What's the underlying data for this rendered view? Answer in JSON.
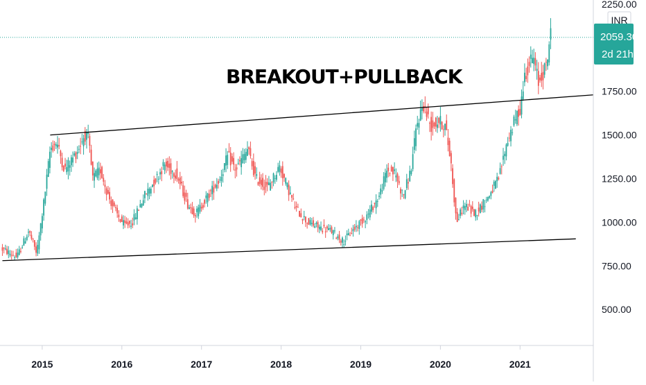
{
  "chart_data": {
    "type": "candlestick",
    "title": "",
    "annotation": "BREAKOUT+PULLBACK",
    "currency": "INR",
    "last_price": "2059.30",
    "countdown": "2d 21h",
    "y_axis": {
      "range": [
        250,
        2300
      ],
      "ticks": [
        "2250.00",
        "1750.00",
        "1500.00",
        "1250.00",
        "1000.00",
        "750.00",
        "500.00"
      ],
      "tick_values": [
        2250,
        1750,
        1500,
        1250,
        1000,
        750,
        500
      ]
    },
    "x_axis": {
      "range": [
        2014.47,
        2021.92
      ],
      "ticks": [
        "2015",
        "2016",
        "2017",
        "2018",
        "2019",
        "2020",
        "2021"
      ],
      "tick_values": [
        2015,
        2016,
        2017,
        2018,
        2019,
        2020,
        2021
      ]
    },
    "trendlines": [
      {
        "name": "upper-channel",
        "from": [
          2015.1,
          1500
        ],
        "to": [
          2021.92,
          1730
        ]
      },
      {
        "name": "lower-channel",
        "from": [
          2014.5,
          780
        ],
        "to": [
          2021.7,
          905
        ]
      }
    ],
    "price_path": [
      [
        2014.5,
        850
      ],
      [
        2014.7,
        800
      ],
      [
        2014.85,
        950
      ],
      [
        2014.95,
        820
      ],
      [
        2015.05,
        1150
      ],
      [
        2015.12,
        1420
      ],
      [
        2015.2,
        1460
      ],
      [
        2015.3,
        1300
      ],
      [
        2015.45,
        1400
      ],
      [
        2015.55,
        1500
      ],
      [
        2015.6,
        1480
      ],
      [
        2015.65,
        1250
      ],
      [
        2015.75,
        1300
      ],
      [
        2015.85,
        1150
      ],
      [
        2015.95,
        1050
      ],
      [
        2016.05,
        980
      ],
      [
        2016.15,
        1000
      ],
      [
        2016.3,
        1150
      ],
      [
        2016.45,
        1250
      ],
      [
        2016.55,
        1330
      ],
      [
        2016.7,
        1280
      ],
      [
        2016.85,
        1100
      ],
      [
        2016.95,
        1050
      ],
      [
        2017.1,
        1150
      ],
      [
        2017.25,
        1250
      ],
      [
        2017.35,
        1380
      ],
      [
        2017.45,
        1300
      ],
      [
        2017.6,
        1420
      ],
      [
        2017.7,
        1250
      ],
      [
        2017.85,
        1200
      ],
      [
        2018.0,
        1320
      ],
      [
        2018.1,
        1200
      ],
      [
        2018.2,
        1080
      ],
      [
        2018.35,
        1000
      ],
      [
        2018.5,
        970
      ],
      [
        2018.65,
        950
      ],
      [
        2018.8,
        890
      ],
      [
        2018.95,
        970
      ],
      [
        2019.1,
        1040
      ],
      [
        2019.25,
        1150
      ],
      [
        2019.35,
        1300
      ],
      [
        2019.45,
        1280
      ],
      [
        2019.55,
        1150
      ],
      [
        2019.65,
        1300
      ],
      [
        2019.72,
        1550
      ],
      [
        2019.8,
        1680
      ],
      [
        2019.9,
        1550
      ],
      [
        2020.0,
        1580
      ],
      [
        2020.08,
        1550
      ],
      [
        2020.15,
        1350
      ],
      [
        2020.22,
        1000
      ],
      [
        2020.32,
        1100
      ],
      [
        2020.45,
        1050
      ],
      [
        2020.6,
        1130
      ],
      [
        2020.75,
        1250
      ],
      [
        2020.85,
        1450
      ],
      [
        2020.95,
        1580
      ],
      [
        2021.02,
        1650
      ],
      [
        2021.08,
        1850
      ],
      [
        2021.18,
        1950
      ],
      [
        2021.25,
        1800
      ],
      [
        2021.35,
        1900
      ],
      [
        2021.4,
        2080
      ]
    ],
    "colors": {
      "up": "#26a69a",
      "down": "#ef5350",
      "trendline": "#000000",
      "price_line": "#26a69a",
      "grid": "#f0f3fa",
      "axis_text": "#131722"
    },
    "grid": false
  }
}
